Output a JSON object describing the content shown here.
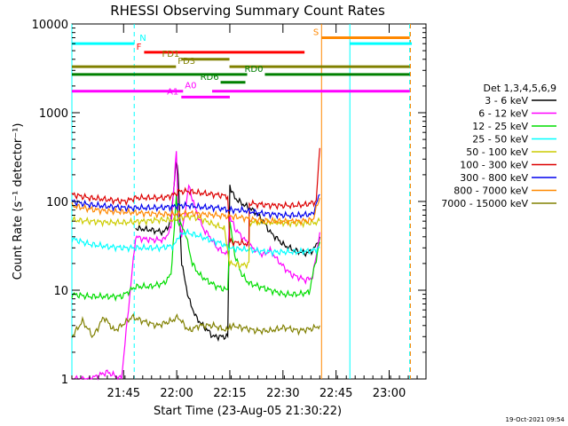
{
  "chart_data": {
    "type": "line",
    "title": "RHESSI Observing Summary Count Rates",
    "xlabel": "Start Time (23-Aug-05 21:30:22)",
    "ylabel": "Count Rate (s⁻¹ detector⁻¹)",
    "footer": "19-Oct-2021 09:54",
    "y_scale": "log",
    "ylim": [
      1,
      10000
    ],
    "xlim_minutes": [
      0,
      100
    ],
    "y_ticks": [
      "1",
      "10",
      "100",
      "1000",
      "10000"
    ],
    "x_ticks": [
      {
        "label": "21:45",
        "t": 14.6
      },
      {
        "label": "22:00",
        "t": 29.6
      },
      {
        "label": "22:15",
        "t": 44.6
      },
      {
        "label": "22:30",
        "t": 59.6
      },
      {
        "label": "22:45",
        "t": 74.6
      },
      {
        "label": "23:00",
        "t": 89.6
      }
    ],
    "legend_title": "Det 1,3,4,5,6,9",
    "legend_position": "right",
    "series": [
      {
        "name": "3 - 6 keV",
        "color": "#000000",
        "points": [
          [
            18,
            50
          ],
          [
            22,
            48
          ],
          [
            26,
            45
          ],
          [
            28,
            60
          ],
          [
            29.5,
            300
          ],
          [
            30,
            200
          ],
          [
            31,
            20
          ],
          [
            33,
            8
          ],
          [
            35,
            5
          ],
          [
            37,
            4
          ],
          [
            40,
            3
          ],
          [
            44,
            3
          ],
          [
            44.6,
            150
          ],
          [
            46,
            110
          ],
          [
            48,
            95
          ],
          [
            50,
            85
          ],
          [
            52,
            75
          ],
          [
            54,
            60
          ],
          [
            56,
            45
          ],
          [
            58,
            38
          ],
          [
            60,
            32
          ],
          [
            63,
            28
          ],
          [
            66,
            26
          ],
          [
            68,
            28
          ],
          [
            69,
            32
          ],
          [
            70,
            40
          ]
        ]
      },
      {
        "name": "6 - 12 keV",
        "color": "#ff00ff",
        "points": [
          [
            0,
            1
          ],
          [
            5,
            1
          ],
          [
            10,
            1.2
          ],
          [
            14,
            1
          ],
          [
            18,
            40
          ],
          [
            20,
            38
          ],
          [
            23,
            37
          ],
          [
            26,
            37
          ],
          [
            28,
            50
          ],
          [
            29.5,
            400
          ],
          [
            30,
            80
          ],
          [
            31,
            40
          ],
          [
            33,
            150
          ],
          [
            35,
            80
          ],
          [
            37,
            50
          ],
          [
            39,
            40
          ],
          [
            41,
            30
          ],
          [
            44,
            25
          ],
          [
            44.6,
            70
          ],
          [
            46,
            50
          ],
          [
            48,
            40
          ],
          [
            51,
            30
          ],
          [
            54,
            25
          ],
          [
            56,
            28
          ],
          [
            58,
            22
          ],
          [
            60,
            18
          ],
          [
            62,
            15
          ],
          [
            64,
            14
          ],
          [
            66,
            13
          ],
          [
            68,
            14
          ],
          [
            70,
            45
          ]
        ]
      },
      {
        "name": "12 - 25 keV",
        "color": "#00dd00",
        "points": [
          [
            0,
            9
          ],
          [
            5,
            8.5
          ],
          [
            10,
            8.5
          ],
          [
            14,
            8.5
          ],
          [
            18,
            11
          ],
          [
            22,
            11
          ],
          [
            26,
            12
          ],
          [
            28,
            15
          ],
          [
            29.5,
            120
          ],
          [
            30,
            60
          ],
          [
            32,
            45
          ],
          [
            34,
            20
          ],
          [
            36,
            15
          ],
          [
            38,
            13
          ],
          [
            41,
            11
          ],
          [
            44,
            10
          ],
          [
            44.6,
            60
          ],
          [
            46,
            25
          ],
          [
            48,
            15
          ],
          [
            50,
            12
          ],
          [
            53,
            11
          ],
          [
            56,
            10
          ],
          [
            60,
            9
          ],
          [
            64,
            9
          ],
          [
            67,
            9.5
          ],
          [
            70,
            35
          ]
        ]
      },
      {
        "name": "25 - 50 keV",
        "color": "#00ffff",
        "points": [
          [
            0,
            38
          ],
          [
            5,
            33
          ],
          [
            10,
            31
          ],
          [
            15,
            30
          ],
          [
            20,
            30
          ],
          [
            25,
            30
          ],
          [
            29,
            32
          ],
          [
            30,
            40
          ],
          [
            32,
            45
          ],
          [
            35,
            42
          ],
          [
            38,
            38
          ],
          [
            42,
            34
          ],
          [
            44.6,
            30
          ],
          [
            48,
            29
          ],
          [
            52,
            28
          ],
          [
            56,
            27
          ],
          [
            60,
            27
          ],
          [
            64,
            27
          ],
          [
            68,
            28
          ],
          [
            70,
            30
          ]
        ]
      },
      {
        "name": "50 - 100 keV",
        "color": "#cccc00",
        "points": [
          [
            0,
            62
          ],
          [
            5,
            60
          ],
          [
            10,
            58
          ],
          [
            15,
            58
          ],
          [
            20,
            60
          ],
          [
            25,
            62
          ],
          [
            29,
            62
          ],
          [
            30,
            65
          ],
          [
            33,
            68
          ],
          [
            36,
            65
          ],
          [
            40,
            55
          ],
          [
            43,
            50
          ],
          [
            44.6,
            20
          ],
          [
            48,
            19
          ],
          [
            50,
            20
          ],
          [
            50.1,
            58
          ],
          [
            54,
            58
          ],
          [
            58,
            58
          ],
          [
            62,
            57
          ],
          [
            66,
            57
          ],
          [
            69,
            58
          ],
          [
            70,
            60
          ]
        ]
      },
      {
        "name": "100 - 300 keV",
        "color": "#dd0000",
        "points": [
          [
            0,
            120
          ],
          [
            5,
            110
          ],
          [
            10,
            105
          ],
          [
            15,
            100
          ],
          [
            18,
            110
          ],
          [
            22,
            110
          ],
          [
            26,
            110
          ],
          [
            29,
            120
          ],
          [
            30,
            130
          ],
          [
            33,
            130
          ],
          [
            36,
            125
          ],
          [
            40,
            120
          ],
          [
            44,
            115
          ],
          [
            44.6,
            35
          ],
          [
            48,
            34
          ],
          [
            50,
            33
          ],
          [
            50.1,
            95
          ],
          [
            54,
            92
          ],
          [
            58,
            90
          ],
          [
            62,
            90
          ],
          [
            66,
            92
          ],
          [
            69,
            100
          ],
          [
            70,
            400
          ]
        ]
      },
      {
        "name": "300 - 800 keV",
        "color": "#0000ee",
        "points": [
          [
            0,
            100
          ],
          [
            5,
            92
          ],
          [
            10,
            88
          ],
          [
            15,
            85
          ],
          [
            20,
            85
          ],
          [
            25,
            85
          ],
          [
            29,
            88
          ],
          [
            30,
            90
          ],
          [
            33,
            90
          ],
          [
            37,
            86
          ],
          [
            41,
            85
          ],
          [
            44.6,
            80
          ],
          [
            48,
            80
          ],
          [
            52,
            75
          ],
          [
            56,
            72
          ],
          [
            60,
            70
          ],
          [
            64,
            70
          ],
          [
            68,
            72
          ],
          [
            70,
            120
          ]
        ]
      },
      {
        "name": "800 - 7000 keV",
        "color": "#ff8800",
        "points": [
          [
            0,
            90
          ],
          [
            5,
            82
          ],
          [
            10,
            78
          ],
          [
            15,
            76
          ],
          [
            20,
            74
          ],
          [
            25,
            72
          ],
          [
            29,
            72
          ],
          [
            30,
            73
          ],
          [
            33,
            74
          ],
          [
            37,
            72
          ],
          [
            41,
            70
          ],
          [
            44.6,
            68
          ],
          [
            48,
            66
          ],
          [
            52,
            62
          ],
          [
            56,
            60
          ],
          [
            60,
            60
          ],
          [
            64,
            60
          ],
          [
            68,
            62
          ],
          [
            70,
            110
          ]
        ]
      },
      {
        "name": "7000 - 15000 keV",
        "color": "#808000",
        "points": [
          [
            0,
            3
          ],
          [
            3,
            4.5
          ],
          [
            6,
            3
          ],
          [
            9,
            5
          ],
          [
            12,
            3.5
          ],
          [
            14,
            4
          ],
          [
            17,
            5
          ],
          [
            20,
            4.5
          ],
          [
            24,
            4
          ],
          [
            28,
            4.5
          ],
          [
            30,
            5
          ],
          [
            33,
            3.5
          ],
          [
            36,
            4
          ],
          [
            40,
            4
          ],
          [
            44,
            3.5
          ],
          [
            44.6,
            4
          ],
          [
            48,
            3.8
          ],
          [
            52,
            3.5
          ],
          [
            56,
            3.5
          ],
          [
            60,
            3.8
          ],
          [
            64,
            3.5
          ],
          [
            68,
            3.7
          ],
          [
            70,
            4
          ]
        ]
      }
    ],
    "flags": [
      {
        "label": "N",
        "color": "#00ffff",
        "y": 6000,
        "segments": [
          [
            0,
            17.6
          ],
          [
            78.5,
            96
          ]
        ]
      },
      {
        "label": "F",
        "color": "#ff0000",
        "y": 4800,
        "segments": [
          [
            20.4,
            65.7
          ]
        ]
      },
      {
        "label": "FD1",
        "color": "#808000",
        "y": 4000,
        "segments": [
          [
            30.9,
            44.5
          ]
        ]
      },
      {
        "label": "FD3",
        "color": "#808000",
        "y": 3300,
        "segments": [
          [
            0,
            29.4
          ],
          [
            44.5,
            95.4
          ]
        ]
      },
      {
        "label": "RD0",
        "color": "#008000",
        "y": 2700,
        "segments": [
          [
            0,
            49.5
          ],
          [
            54.5,
            95.4
          ]
        ]
      },
      {
        "label": "RD6",
        "color": "#008000",
        "y": 2200,
        "segments": [
          [
            42,
            49
          ]
        ]
      },
      {
        "label": "A0",
        "color": "#ff00ff",
        "y": 1750,
        "segments": [
          [
            0,
            31.4
          ],
          [
            39.6,
            95.4
          ]
        ]
      },
      {
        "label": "A1",
        "color": "#ff00ff",
        "y": 1500,
        "segments": [
          [
            30.9,
            44.6
          ]
        ]
      },
      {
        "label": "S",
        "color": "#ff8800",
        "y": 7000,
        "segments": [
          [
            70.5,
            95.4
          ]
        ]
      }
    ],
    "vlines": [
      {
        "t": 0,
        "color": "#00ffff",
        "dashed": false
      },
      {
        "t": 17.6,
        "color": "#00ffff",
        "dashed": true
      },
      {
        "t": 70.5,
        "color": "#ff8800",
        "dashed": false
      },
      {
        "t": 78.5,
        "color": "#00ffff",
        "dashed": false
      },
      {
        "t": 95.4,
        "color": "#00ffff",
        "dashed": true
      },
      {
        "t": 95.6,
        "color": "#ff8800",
        "dashed": true
      }
    ]
  }
}
